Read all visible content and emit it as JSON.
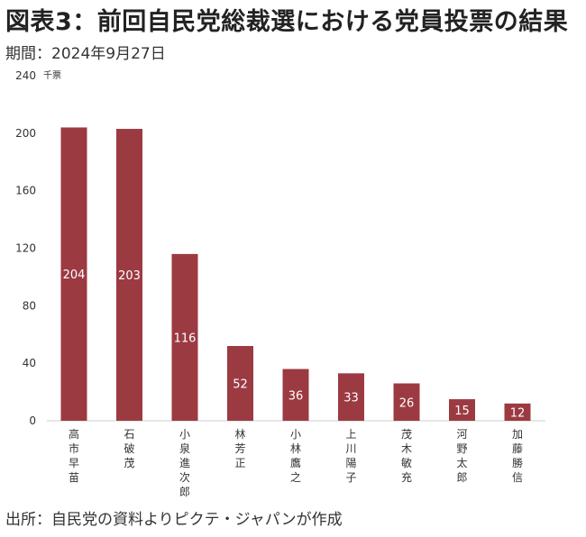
{
  "header": {
    "title": "図表3：前回自民党総裁選における党員投票の結果",
    "period": "期間：2024年9月27日",
    "unit": "千票",
    "source": "出所：自民党の資料よりピクテ・ジャパンが作成"
  },
  "chart_data": {
    "type": "bar",
    "categories": [
      "高市早苗",
      "石破茂",
      "小泉進次郎",
      "林芳正",
      "小林鷹之",
      "上川陽子",
      "茂木敏充",
      "河野太郎",
      "加藤勝信"
    ],
    "values": [
      204,
      203,
      116,
      52,
      36,
      33,
      26,
      15,
      12
    ],
    "ylim": [
      0,
      240
    ],
    "yticks": [
      0,
      40,
      80,
      120,
      160,
      200,
      240
    ],
    "ylabel": "千票",
    "bar_color": "#9c3a42",
    "grid": false
  }
}
